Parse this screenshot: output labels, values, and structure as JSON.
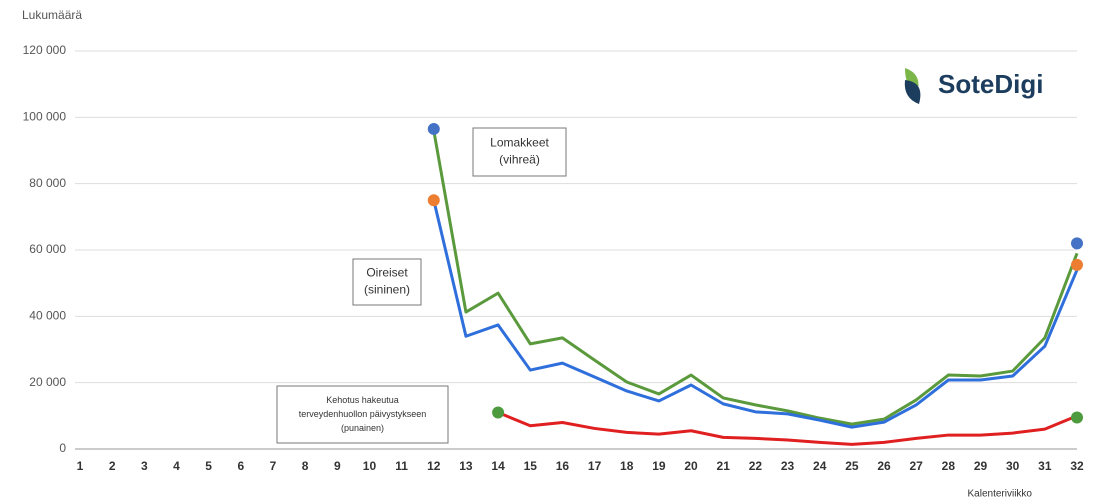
{
  "chart_data": {
    "type": "line",
    "y_label": "Lukumäärä",
    "x_label": "Kalenteriviikko",
    "logo": "SoteDigi",
    "categories": [
      "1",
      "2",
      "3",
      "4",
      "5",
      "6",
      "7",
      "8",
      "9",
      "10",
      "11",
      "12",
      "13",
      "14",
      "15",
      "16",
      "17",
      "18",
      "19",
      "20",
      "21",
      "22",
      "23",
      "24",
      "25",
      "26",
      "27",
      "28",
      "29",
      "30",
      "31",
      "32"
    ],
    "ylim": [
      0,
      120000
    ],
    "yticks": [
      {
        "value": 0,
        "label": "0"
      },
      {
        "value": 20000,
        "label": "20 000"
      },
      {
        "value": 40000,
        "label": "40 000"
      },
      {
        "value": 60000,
        "label": "60 000"
      },
      {
        "value": 80000,
        "label": "80 000"
      },
      {
        "value": 100000,
        "label": "100 000"
      },
      {
        "value": 120000,
        "label": "120 000"
      }
    ],
    "grid": true,
    "series": [
      {
        "name": "Lomakkeet",
        "color": "#5a9a3c",
        "values": [
          null,
          null,
          null,
          null,
          null,
          null,
          null,
          null,
          null,
          null,
          null,
          96000,
          41300,
          47000,
          31700,
          33500,
          26800,
          20200,
          16600,
          22300,
          15400,
          13300,
          11500,
          9300,
          7500,
          9000,
          14800,
          22300,
          22000,
          23500,
          33500,
          59000
        ]
      },
      {
        "name": "Oireiset",
        "color": "#2f6fdc",
        "values": [
          null,
          null,
          null,
          null,
          null,
          null,
          null,
          null,
          null,
          null,
          null,
          75000,
          34000,
          37400,
          23800,
          25900,
          21700,
          17500,
          14500,
          19300,
          13600,
          11200,
          10600,
          8700,
          6600,
          8100,
          13300,
          20800,
          20800,
          22000,
          31000,
          54000
        ]
      },
      {
        "name": "Kehotus",
        "color": "#e02020",
        "values": [
          null,
          null,
          null,
          null,
          null,
          null,
          null,
          null,
          null,
          null,
          null,
          null,
          null,
          11000,
          7000,
          8000,
          6200,
          5000,
          4500,
          5500,
          3500,
          3200,
          2700,
          2000,
          1400,
          2000,
          3200,
          4200,
          4200,
          4800,
          6000,
          10000
        ]
      }
    ],
    "points": [
      {
        "x": 12,
        "y": 96500,
        "color": "#4472c4"
      },
      {
        "x": 12,
        "y": 75000,
        "color": "#ed7d31"
      },
      {
        "x": 14,
        "y": 11000,
        "color": "#4e9a3e"
      },
      {
        "x": 32,
        "y": 62000,
        "color": "#4472c4"
      },
      {
        "x": 32,
        "y": 55500,
        "color": "#ed7d31"
      },
      {
        "x": 32,
        "y": 9500,
        "color": "#4e9a3e"
      }
    ],
    "annotations": [
      {
        "lines": [
          "Lomakkeet",
          "(vihreä)"
        ]
      },
      {
        "lines": [
          "Oireiset",
          "(sininen)"
        ]
      },
      {
        "lines": [
          "Kehotus hakeutua",
          "terveydenhuollon päivystykseen",
          "(punainen)"
        ]
      }
    ]
  }
}
